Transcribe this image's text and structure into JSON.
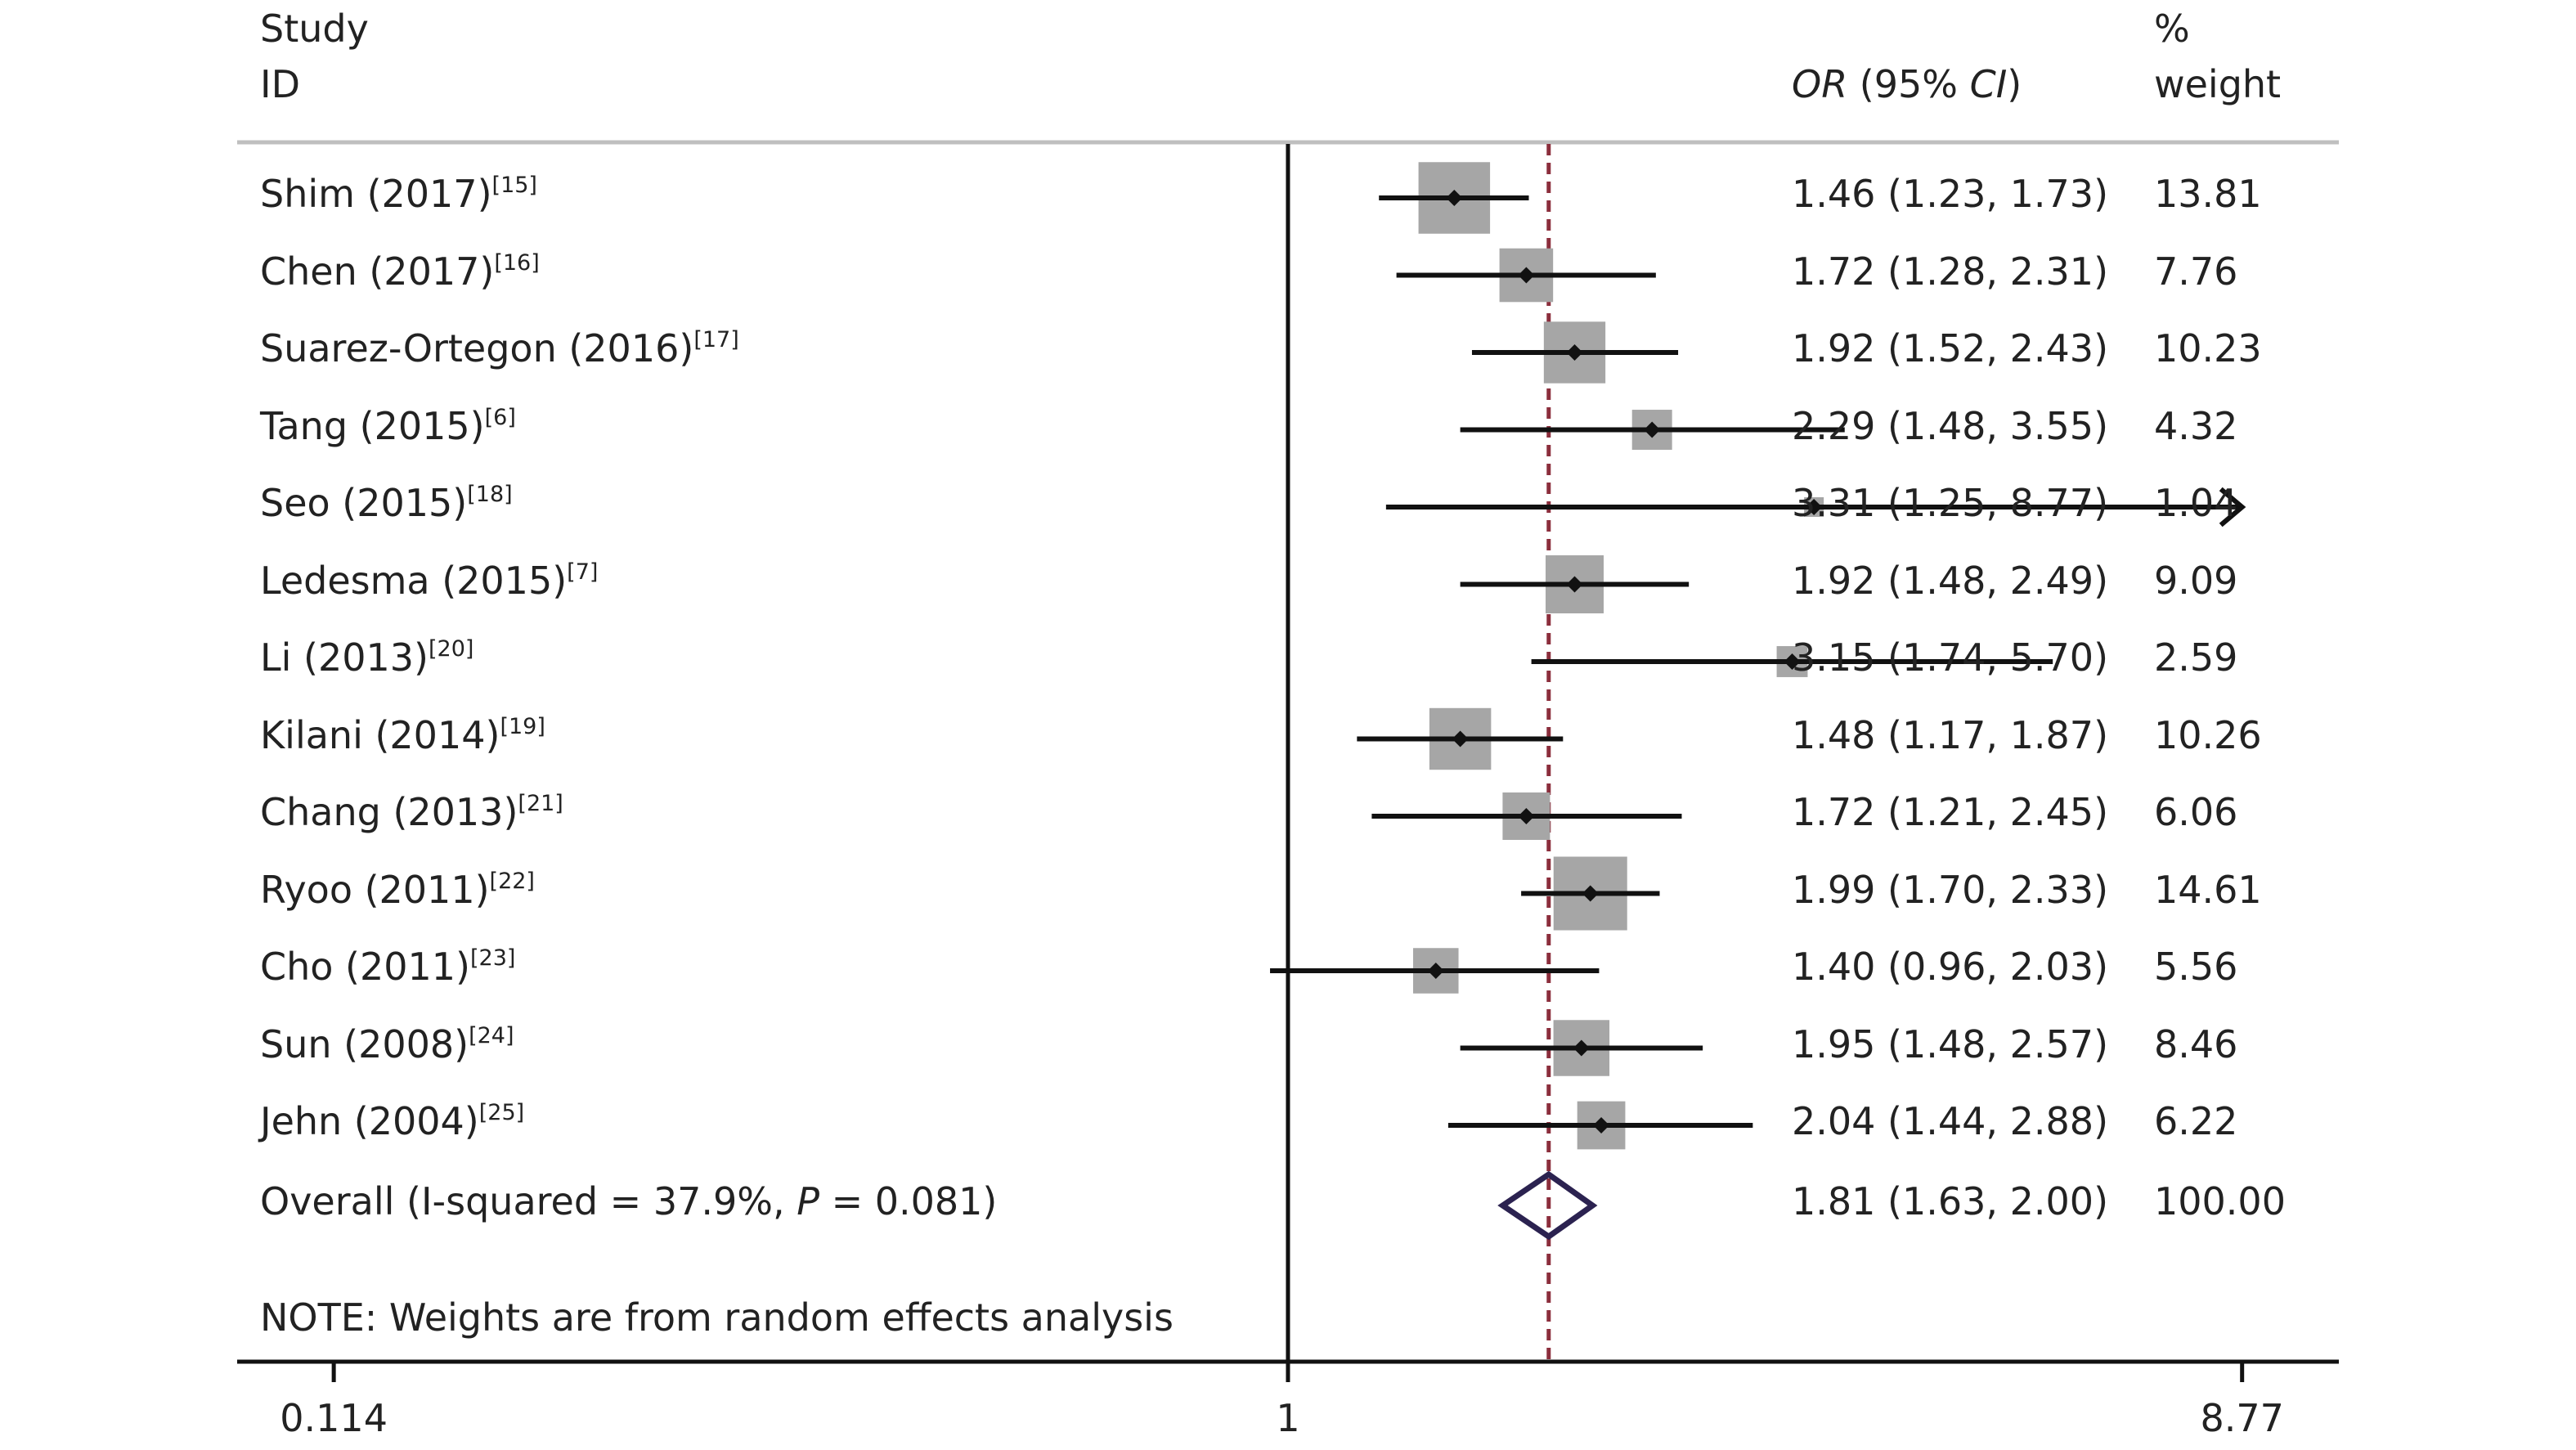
{
  "chart_data": {
    "type": "forest",
    "title": "",
    "header": {
      "study_line1": "Study",
      "study_line2": "ID",
      "or_label_italic1": "OR",
      "or_label_mid": " (95% ",
      "or_label_italic2": "CI",
      "or_label_end": ")",
      "weight_line1": "%",
      "weight_line2": "weight"
    },
    "xaxis": {
      "scale": "log",
      "null_line": 1,
      "ticks": [
        "0.114",
        "1",
        "8.77"
      ],
      "tick_values": [
        0.114,
        1,
        8.77
      ],
      "range": [
        0.0915,
        10.93
      ]
    },
    "pooled_line": 1.81,
    "studies": [
      {
        "name": "Shim (2017)",
        "ref": "[15]",
        "or": 1.46,
        "lower": 1.23,
        "upper": 1.73,
        "ci_text": "1.46 (1.23, 1.73)",
        "weight": "13.81"
      },
      {
        "name": "Chen (2017)",
        "ref": "[16]",
        "or": 1.72,
        "lower": 1.28,
        "upper": 2.31,
        "ci_text": "1.72 (1.28, 2.31)",
        "weight": "7.76"
      },
      {
        "name": "Suarez-Ortegon (2016)",
        "ref": "[17]",
        "or": 1.92,
        "lower": 1.52,
        "upper": 2.43,
        "ci_text": "1.92 (1.52, 2.43)",
        "weight": "10.23"
      },
      {
        "name": "Tang (2015)",
        "ref": "[6]",
        "or": 2.29,
        "lower": 1.48,
        "upper": 3.55,
        "ci_text": "2.29 (1.48, 3.55)",
        "weight": "4.32"
      },
      {
        "name": "Seo (2015)",
        "ref": "[18]",
        "or": 3.31,
        "lower": 1.25,
        "upper": 8.77,
        "ci_text": "3.31 (1.25, 8.77)",
        "weight": "1.04",
        "arrow": true
      },
      {
        "name": "Ledesma (2015)",
        "ref": "[7]",
        "or": 1.92,
        "lower": 1.48,
        "upper": 2.49,
        "ci_text": "1.92 (1.48, 2.49)",
        "weight": "9.09"
      },
      {
        "name": "Li (2013)",
        "ref": "[20]",
        "or": 3.15,
        "lower": 1.74,
        "upper": 5.7,
        "ci_text": "3.15 (1.74, 5.70)",
        "weight": "2.59"
      },
      {
        "name": "Kilani (2014)",
        "ref": "[19]",
        "or": 1.48,
        "lower": 1.17,
        "upper": 1.87,
        "ci_text": "1.48 (1.17, 1.87)",
        "weight": "10.26"
      },
      {
        "name": "Chang (2013)",
        "ref": "[21]",
        "or": 1.72,
        "lower": 1.21,
        "upper": 2.45,
        "ci_text": "1.72 (1.21, 2.45)",
        "weight": "6.06"
      },
      {
        "name": "Ryoo (2011)",
        "ref": "[22]",
        "or": 1.99,
        "lower": 1.7,
        "upper": 2.33,
        "ci_text": "1.99 (1.70, 2.33)",
        "weight": "14.61"
      },
      {
        "name": "Cho (2011)",
        "ref": "[23]",
        "or": 1.4,
        "lower": 0.96,
        "upper": 2.03,
        "ci_text": "1.40 (0.96, 2.03)",
        "weight": "5.56"
      },
      {
        "name": "Sun (2008)",
        "ref": "[24]",
        "or": 1.95,
        "lower": 1.48,
        "upper": 2.57,
        "ci_text": "1.95 (1.48, 2.57)",
        "weight": "8.46"
      },
      {
        "name": "Jehn (2004)",
        "ref": "[25]",
        "or": 2.04,
        "lower": 1.44,
        "upper": 2.88,
        "ci_text": "2.04 (1.44, 2.88)",
        "weight": "6.22"
      }
    ],
    "overall": {
      "label_prefix": "Overall (I-squared = 37.9%, ",
      "label_p": "P",
      "label_suffix": " = 0.081)",
      "or": 1.81,
      "lower": 1.63,
      "upper": 2.0,
      "ci_text": "1.81 (1.63, 2.00)",
      "weight": "100.00"
    },
    "note": "NOTE: Weights are from random effects analysis",
    "colors": {
      "box": "#a6a6a6",
      "line": "#111111",
      "pooled_line": "#8b2e3c",
      "diamond": "#2b2250",
      "rule": "#bfbfbf"
    }
  }
}
